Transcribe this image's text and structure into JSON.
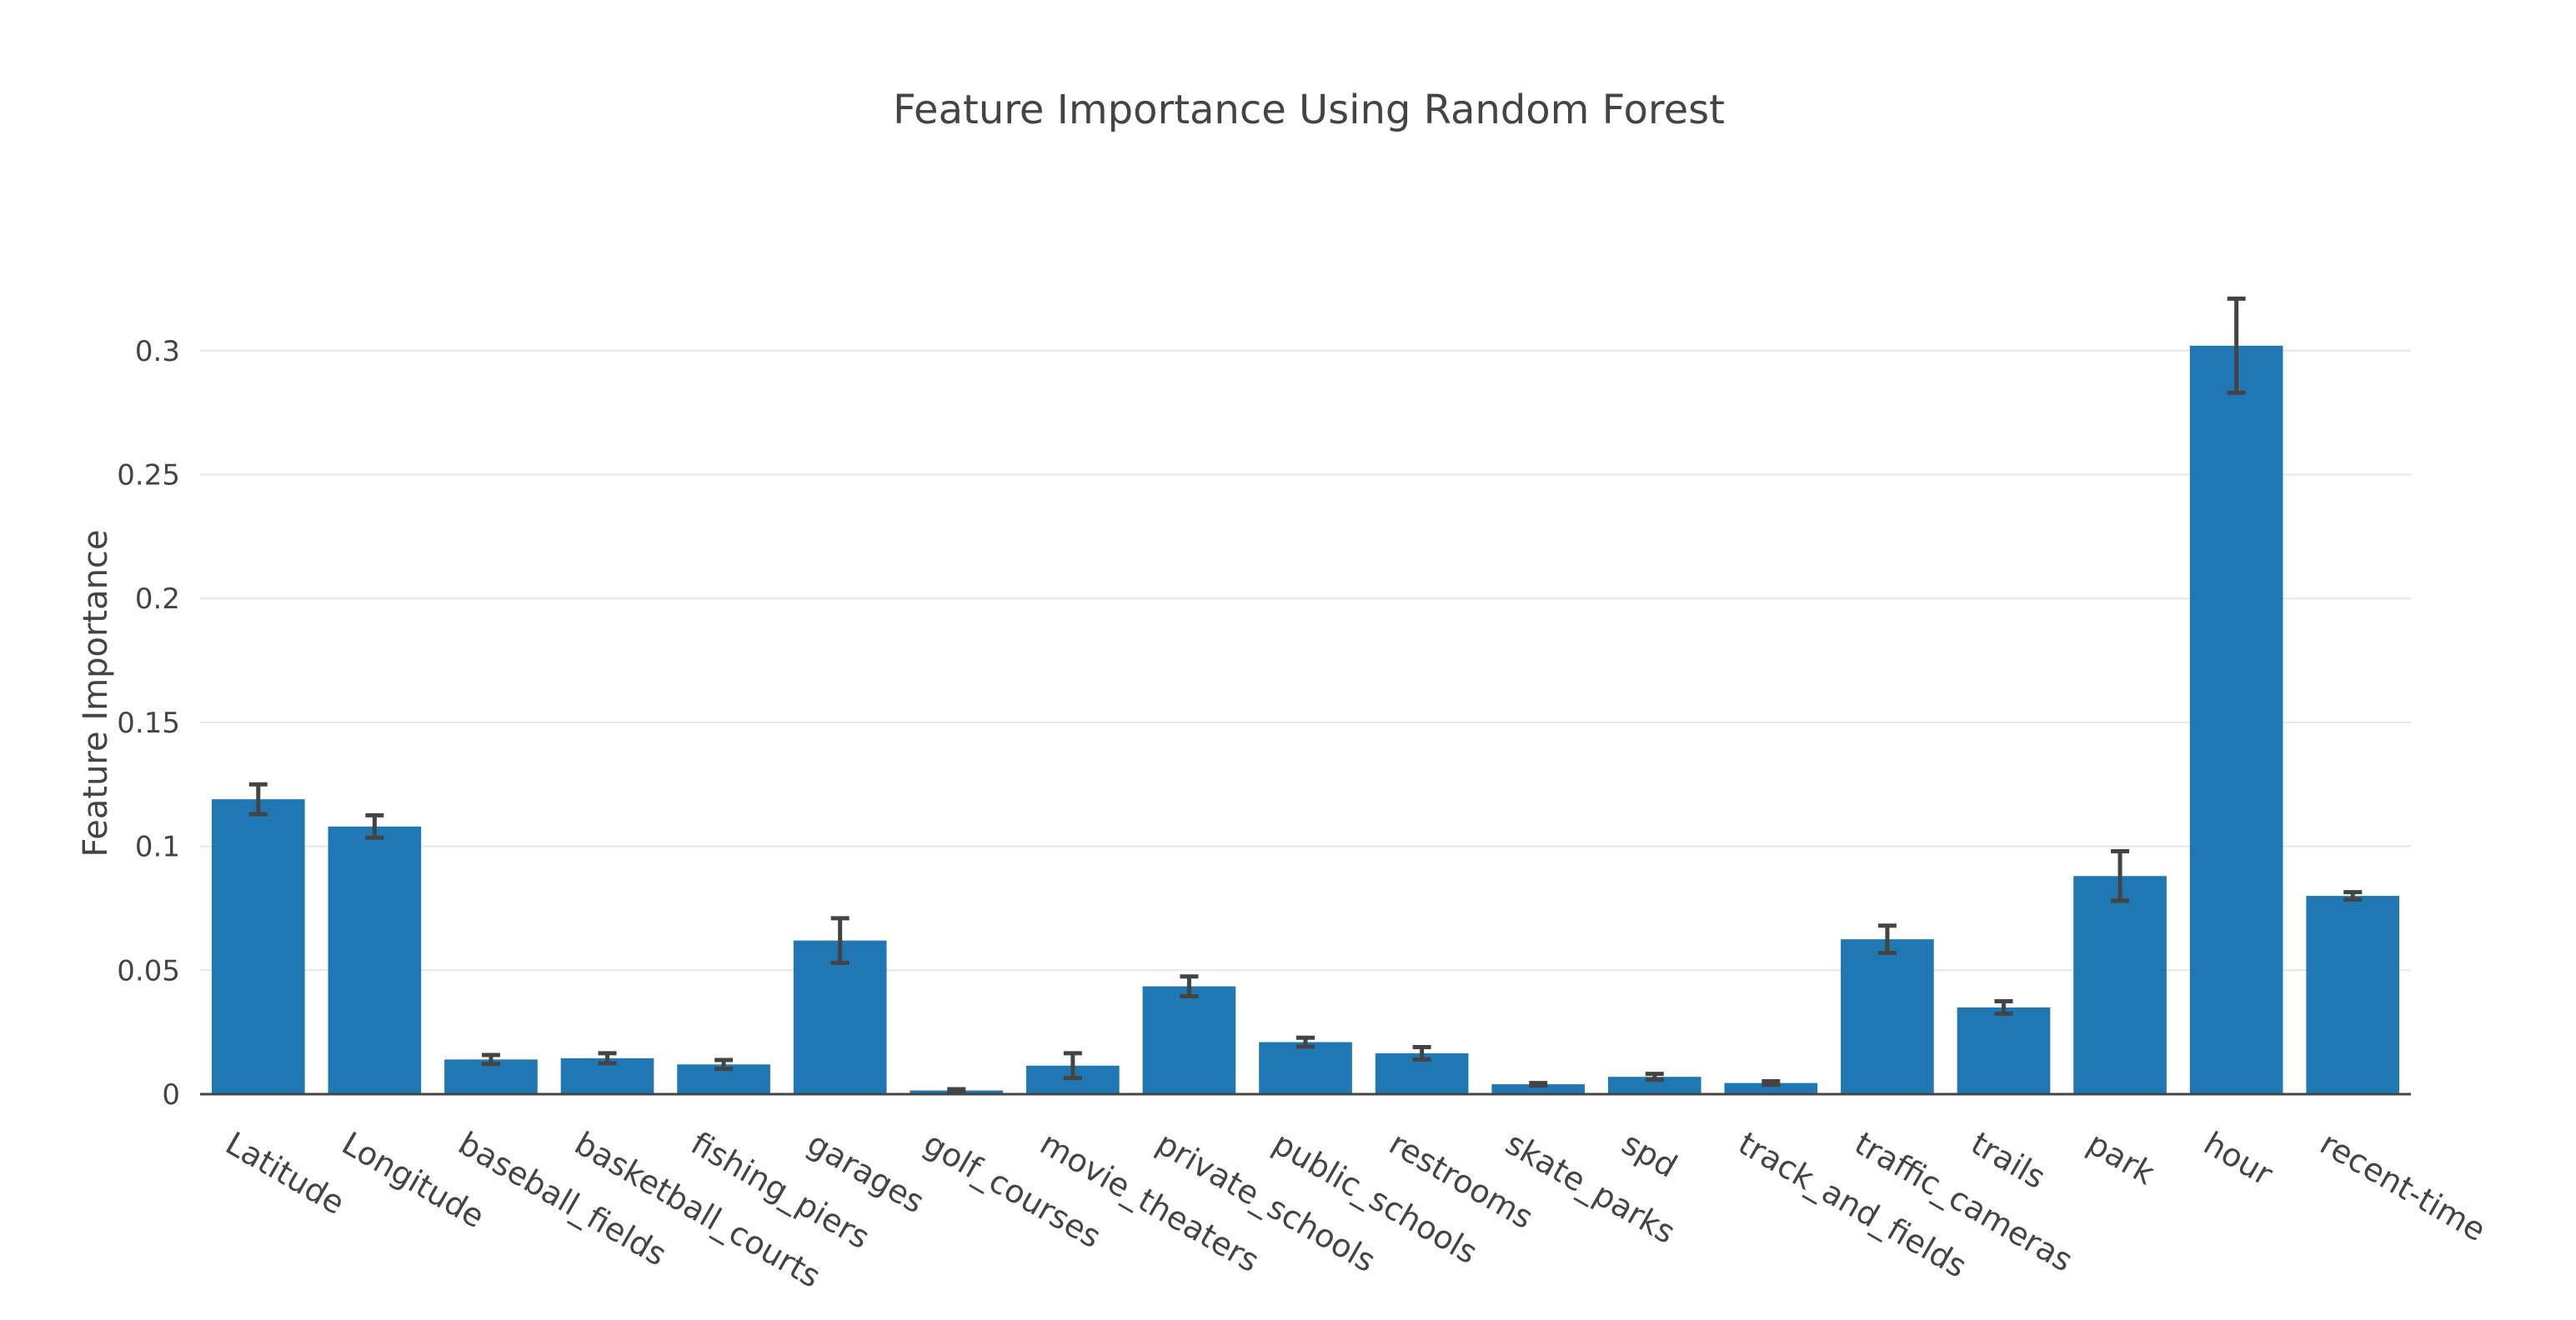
{
  "chart_data": {
    "type": "bar",
    "title": "Feature Importance Using Random Forest",
    "xlabel": "",
    "ylabel": "Feature Importance",
    "ylim": [
      0,
      0.32
    ],
    "yticks": [
      0,
      0.05,
      0.1,
      0.15,
      0.2,
      0.25,
      0.3
    ],
    "ytick_labels": [
      "0",
      "0.05",
      "0.1",
      "0.15",
      "0.2",
      "0.25",
      "0.3"
    ],
    "grid": true,
    "bar_color": "#1f77b4",
    "error_color": "#444444",
    "categories": [
      "Latitude",
      "Longitude",
      "baseball_fields",
      "basketball_courts",
      "fishing_piers",
      "garages",
      "golf_courses",
      "movie_theaters",
      "private_schools",
      "public_schools",
      "restrooms",
      "skate_parks",
      "spd",
      "track_and_fields",
      "traffic_cameras",
      "trails",
      "park",
      "hour",
      "recent-time"
    ],
    "values": [
      0.119,
      0.108,
      0.014,
      0.0145,
      0.012,
      0.062,
      0.0015,
      0.0115,
      0.0435,
      0.021,
      0.0165,
      0.004,
      0.007,
      0.0045,
      0.0625,
      0.035,
      0.088,
      0.302,
      0.08
    ],
    "errors": [
      0.006,
      0.0045,
      0.0018,
      0.002,
      0.0018,
      0.009,
      0.0005,
      0.005,
      0.004,
      0.0018,
      0.0025,
      0.0005,
      0.0012,
      0.0007,
      0.0055,
      0.0025,
      0.01,
      0.019,
      0.0015
    ]
  }
}
